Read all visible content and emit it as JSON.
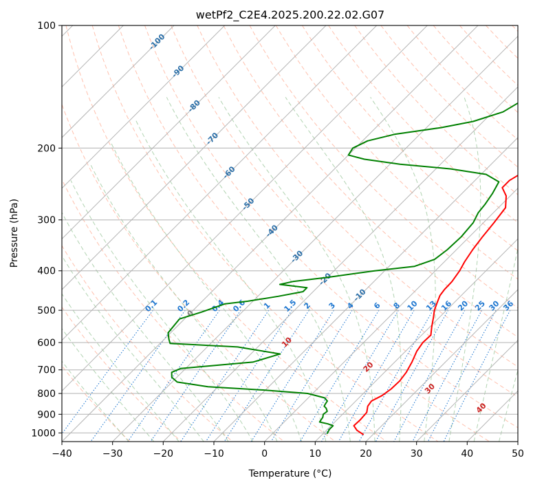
{
  "chart_data": {
    "type": "line",
    "subtype": "skew-T log-P diagram",
    "title": "wetPf2_C2E4.2025.200.22.02.G07",
    "xlabel": "Temperature (°C)",
    "ylabel": "Pressure (hPa)",
    "xlim": [
      -40,
      50
    ],
    "ylim": [
      1050,
      100
    ],
    "yscale": "log",
    "grid": true,
    "legend": "none",
    "x_ticks": [
      -40,
      -30,
      -20,
      -10,
      0,
      10,
      20,
      30,
      40,
      50
    ],
    "y_ticks": [
      100,
      200,
      300,
      400,
      500,
      600,
      700,
      800,
      900,
      1000
    ],
    "series": [
      {
        "color": "#ff0000",
        "points": [
          [
            18.2,
            1010
          ],
          [
            16,
            985
          ],
          [
            14.5,
            960
          ],
          [
            14.6,
            930
          ],
          [
            14.4,
            890
          ],
          [
            13.4,
            860
          ],
          [
            13.1,
            835
          ],
          [
            14.1,
            810
          ],
          [
            14.6,
            780
          ],
          [
            14.7,
            745
          ],
          [
            14.3,
            710
          ],
          [
            13.4,
            670
          ],
          [
            12.2,
            630
          ],
          [
            11.7,
            600
          ],
          [
            11.8,
            575
          ],
          [
            10.4,
            550
          ],
          [
            8.8,
            520
          ],
          [
            7.6,
            500
          ],
          [
            6.7,
            480
          ],
          [
            5.8,
            460
          ],
          [
            5.5,
            445
          ],
          [
            5.4,
            425
          ],
          [
            4.8,
            400
          ],
          [
            4.0,
            380
          ],
          [
            3.2,
            355
          ],
          [
            2.6,
            330
          ],
          [
            2.1,
            305
          ],
          [
            1.4,
            280
          ],
          [
            -0.8,
            262
          ],
          [
            -3.2,
            250
          ],
          [
            -3.2,
            240
          ],
          [
            -2.4,
            232
          ],
          [
            -1.4,
            225
          ],
          [
            0.4,
            215
          ],
          [
            3.4,
            205
          ],
          [
            5.6,
            195
          ],
          [
            7.4,
            185
          ],
          [
            8.6,
            170
          ],
          [
            9.4,
            160
          ],
          [
            11.2,
            150
          ],
          [
            13.4,
            140
          ],
          [
            15.4,
            130
          ],
          [
            16.4,
            120
          ],
          [
            16.6,
            112
          ],
          [
            17.4,
            106
          ],
          [
            18.6,
            100
          ]
        ]
      },
      {
        "color": "#008000",
        "points": [
          [
            10.8,
            1005
          ],
          [
            10.4,
            980
          ],
          [
            10.4,
            960
          ],
          [
            9.0,
            950
          ],
          [
            7.0,
            940
          ],
          [
            6.7,
            915
          ],
          [
            6.2,
            900
          ],
          [
            6.4,
            885
          ],
          [
            5.6,
            870
          ],
          [
            4.8,
            860
          ],
          [
            4.6,
            850
          ],
          [
            4.4,
            835
          ],
          [
            3.2,
            820
          ],
          [
            -1,
            800
          ],
          [
            -10,
            785
          ],
          [
            -22,
            770
          ],
          [
            -29,
            750
          ],
          [
            -31,
            730
          ],
          [
            -32,
            710
          ],
          [
            -31,
            695
          ],
          [
            -26,
            685
          ],
          [
            -18,
            670
          ],
          [
            -14.2,
            640
          ],
          [
            -24,
            615
          ],
          [
            -38,
            603
          ],
          [
            -39,
            590
          ],
          [
            -40.5,
            568
          ],
          [
            -41,
            525
          ],
          [
            -38,
            505
          ],
          [
            -35,
            482
          ],
          [
            -31,
            475
          ],
          [
            -26,
            462
          ],
          [
            -22,
            450
          ],
          [
            -22,
            440
          ],
          [
            -28,
            432
          ],
          [
            -26,
            425
          ],
          [
            -20,
            415
          ],
          [
            -12,
            400
          ],
          [
            -5,
            390
          ],
          [
            -2.4,
            375
          ],
          [
            -1.8,
            355
          ],
          [
            -1.6,
            330
          ],
          [
            -2.0,
            305
          ],
          [
            -3.0,
            288
          ],
          [
            -3.3,
            275
          ],
          [
            -4.0,
            258
          ],
          [
            -5.0,
            242
          ],
          [
            -9.0,
            232
          ],
          [
            -17,
            225
          ],
          [
            -28,
            219
          ],
          [
            -36,
            213
          ],
          [
            -40,
            208
          ],
          [
            -40.5,
            200
          ],
          [
            -39,
            192
          ],
          [
            -35,
            185
          ],
          [
            -27,
            178
          ],
          [
            -22,
            172
          ],
          [
            -18,
            163
          ],
          [
            -16,
            150
          ],
          [
            -15.8,
            140
          ],
          [
            -16.4,
            132
          ],
          [
            -17.4,
            120
          ],
          [
            -17.0,
            110
          ],
          [
            -16.8,
            100
          ]
        ]
      }
    ],
    "background_lines": {
      "dry_adiabats_color": "#ff8c69",
      "moist_adiabats_color": "#90c090",
      "mixing_ratio_color": "#1f77d0",
      "isotherm_color": "#b4b4b4",
      "isotherm_labels": [
        "-100",
        "-90",
        "-80",
        "-70",
        "-60",
        "-50",
        "-40",
        "-30",
        "-20",
        "-10"
      ],
      "isotherm_label_color": "#2b6fa8",
      "mixing_ratio_labels": [
        "0.1",
        "0.2",
        "0.4",
        "0.6",
        "1",
        "1.5",
        "2",
        "3",
        "4",
        "6",
        "8",
        "10",
        "13",
        "16",
        "20",
        "25",
        "30",
        "36"
      ],
      "moist_labels": [
        "0",
        "10",
        "20",
        "30",
        "40"
      ],
      "moist_label_colors": [
        "#808080",
        "#cc2222",
        "#cc2222",
        "#cc2222",
        "#cc2222"
      ]
    }
  }
}
